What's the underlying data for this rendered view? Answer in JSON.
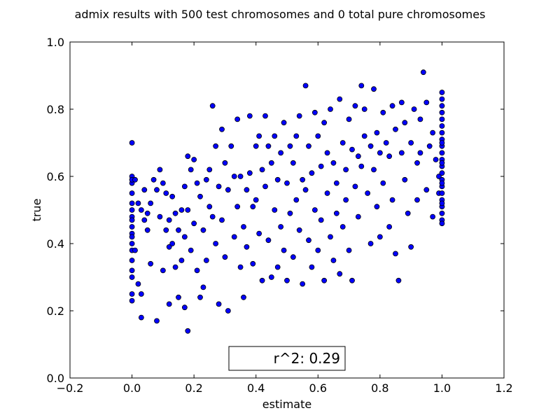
{
  "chart_data": {
    "type": "scatter",
    "title": "admix results with 500 test chromosomes and 0 total pure chromosomes",
    "xlabel": "estimate",
    "ylabel": "true",
    "xlim": [
      -0.2,
      1.2
    ],
    "ylim": [
      0.0,
      1.0
    ],
    "xticks": [
      "−0.2",
      "0.0",
      "0.2",
      "0.4",
      "0.6",
      "0.8",
      "1.0",
      "1.2"
    ],
    "yticks": [
      "0.0",
      "0.2",
      "0.4",
      "0.6",
      "0.8",
      "1.0"
    ],
    "grid": false,
    "marker_color": "#0000ff",
    "annotation": "r^2: 0.29",
    "series": [
      {
        "x": [
          0.0,
          0.0,
          0.0,
          0.0,
          0.0,
          0.0,
          0.0,
          0.0,
          0.0,
          0.0,
          0.0,
          0.0,
          0.0,
          0.0,
          0.0,
          0.0,
          0.0,
          0.0,
          0.0,
          0.01,
          0.01,
          0.02,
          0.02,
          0.03,
          0.03,
          0.03,
          0.04,
          0.04,
          0.05,
          0.05,
          0.06,
          0.06,
          0.07,
          0.08,
          0.08,
          0.09,
          0.09,
          0.1,
          0.1,
          0.11,
          0.11,
          0.12,
          0.12,
          0.12,
          0.13,
          0.13,
          0.14,
          0.14,
          0.15,
          0.15,
          0.16,
          0.16,
          0.17,
          0.17,
          0.17,
          0.18,
          0.18,
          0.18,
          0.19,
          0.19,
          0.2,
          0.2,
          0.21,
          0.21,
          0.22,
          0.22,
          0.23,
          0.23,
          0.24,
          0.24,
          0.25,
          0.25,
          0.26,
          0.26,
          0.27,
          0.27,
          0.28,
          0.28,
          0.29,
          0.29,
          0.3,
          0.3,
          0.31,
          0.31,
          0.32,
          0.33,
          0.33,
          0.34,
          0.34,
          0.35,
          0.35,
          0.36,
          0.36,
          0.37,
          0.37,
          0.38,
          0.38,
          0.39,
          0.39,
          0.4,
          0.4,
          0.41,
          0.41,
          0.42,
          0.42,
          0.43,
          0.43,
          0.44,
          0.44,
          0.45,
          0.45,
          0.46,
          0.46,
          0.47,
          0.47,
          0.48,
          0.48,
          0.49,
          0.49,
          0.5,
          0.5,
          0.51,
          0.51,
          0.52,
          0.52,
          0.53,
          0.53,
          0.54,
          0.54,
          0.55,
          0.55,
          0.56,
          0.56,
          0.57,
          0.57,
          0.58,
          0.58,
          0.59,
          0.59,
          0.6,
          0.6,
          0.61,
          0.61,
          0.62,
          0.62,
          0.63,
          0.63,
          0.64,
          0.64,
          0.65,
          0.65,
          0.66,
          0.66,
          0.67,
          0.67,
          0.68,
          0.68,
          0.69,
          0.69,
          0.7,
          0.7,
          0.71,
          0.71,
          0.72,
          0.72,
          0.73,
          0.73,
          0.74,
          0.74,
          0.75,
          0.75,
          0.76,
          0.77,
          0.77,
          0.78,
          0.78,
          0.79,
          0.79,
          0.8,
          0.8,
          0.81,
          0.81,
          0.82,
          0.83,
          0.83,
          0.84,
          0.84,
          0.85,
          0.85,
          0.86,
          0.87,
          0.87,
          0.88,
          0.88,
          0.89,
          0.9,
          0.9,
          0.91,
          0.92,
          0.92,
          0.93,
          0.93,
          0.94,
          0.95,
          0.95,
          0.96,
          0.97,
          0.97,
          0.98,
          0.99,
          0.99,
          1.0,
          1.0,
          1.0,
          1.0,
          1.0,
          1.0,
          1.0,
          1.0,
          1.0,
          1.0,
          1.0,
          1.0,
          1.0,
          1.0,
          1.0,
          1.0,
          1.0,
          1.0,
          1.0,
          1.0,
          1.0,
          1.0,
          1.0,
          1.0,
          1.0
        ],
        "y": [
          0.7,
          0.6,
          0.58,
          0.55,
          0.52,
          0.5,
          0.48,
          0.45,
          0.43,
          0.42,
          0.4,
          0.38,
          0.35,
          0.32,
          0.3,
          0.23,
          0.25,
          0.59,
          0.47,
          0.59,
          0.38,
          0.52,
          0.28,
          0.5,
          0.25,
          0.18,
          0.47,
          0.56,
          0.44,
          0.49,
          0.52,
          0.34,
          0.59,
          0.56,
          0.17,
          0.62,
          0.48,
          0.32,
          0.58,
          0.44,
          0.55,
          0.47,
          0.39,
          0.22,
          0.54,
          0.4,
          0.49,
          0.33,
          0.44,
          0.24,
          0.5,
          0.35,
          0.57,
          0.42,
          0.21,
          0.66,
          0.5,
          0.14,
          0.62,
          0.38,
          0.65,
          0.46,
          0.58,
          0.32,
          0.54,
          0.24,
          0.44,
          0.27,
          0.59,
          0.35,
          0.62,
          0.51,
          0.81,
          0.48,
          0.69,
          0.4,
          0.57,
          0.22,
          0.74,
          0.47,
          0.64,
          0.36,
          0.56,
          0.2,
          0.69,
          0.6,
          0.42,
          0.77,
          0.51,
          0.33,
          0.6,
          0.45,
          0.24,
          0.56,
          0.39,
          0.78,
          0.61,
          0.51,
          0.34,
          0.69,
          0.53,
          0.72,
          0.43,
          0.62,
          0.29,
          0.78,
          0.57,
          0.69,
          0.41,
          0.64,
          0.3,
          0.72,
          0.5,
          0.59,
          0.33,
          0.67,
          0.45,
          0.76,
          0.38,
          0.58,
          0.29,
          0.69,
          0.49,
          0.64,
          0.36,
          0.72,
          0.53,
          0.78,
          0.44,
          0.59,
          0.28,
          0.87,
          0.56,
          0.69,
          0.41,
          0.61,
          0.33,
          0.79,
          0.5,
          0.72,
          0.38,
          0.63,
          0.47,
          0.76,
          0.29,
          0.67,
          0.55,
          0.8,
          0.42,
          0.64,
          0.35,
          0.58,
          0.49,
          0.83,
          0.31,
          0.7,
          0.45,
          0.62,
          0.53,
          0.77,
          0.38,
          0.68,
          0.29,
          0.81,
          0.57,
          0.66,
          0.48,
          0.87,
          0.63,
          0.72,
          0.8,
          0.55,
          0.69,
          0.4,
          0.86,
          0.62,
          0.51,
          0.73,
          0.67,
          0.42,
          0.79,
          0.58,
          0.7,
          0.66,
          0.45,
          0.81,
          0.53,
          0.37,
          0.74,
          0.29,
          0.82,
          0.67,
          0.59,
          0.76,
          0.49,
          0.7,
          0.39,
          0.8,
          0.64,
          0.53,
          0.67,
          0.77,
          0.91,
          0.56,
          0.82,
          0.69,
          0.48,
          0.73,
          0.65,
          0.55,
          0.6,
          0.85,
          0.83,
          0.81,
          0.79,
          0.77,
          0.75,
          0.73,
          0.71,
          0.69,
          0.67,
          0.65,
          0.63,
          0.61,
          0.59,
          0.57,
          0.55,
          0.53,
          0.51,
          0.49,
          0.47,
          0.46,
          0.52,
          0.58,
          0.64,
          0.7
        ]
      }
    ]
  }
}
